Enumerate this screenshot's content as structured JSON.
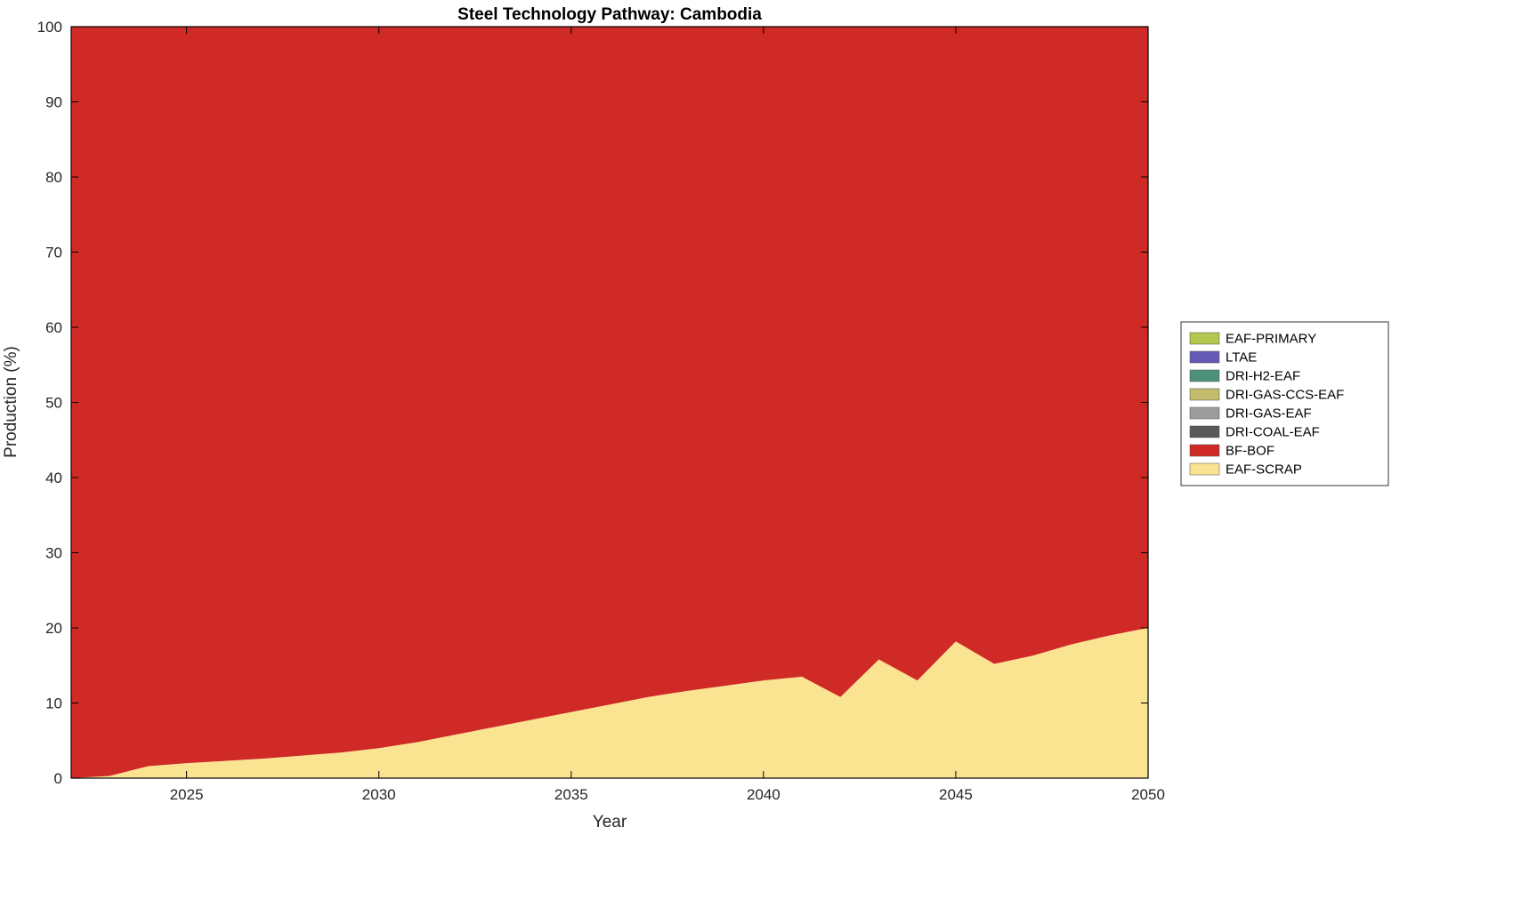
{
  "figure": {
    "background": "#ffffff"
  },
  "chart_data": {
    "type": "area",
    "stacked": true,
    "stack_order": "first-series-on-bottom",
    "title": "Steel Technology Pathway: Cambodia",
    "xlabel": "Year",
    "ylabel": "Production (%)",
    "xlim": [
      2022,
      2050
    ],
    "ylim": [
      0,
      100
    ],
    "xticks": [
      2025,
      2030,
      2035,
      2040,
      2045,
      2050
    ],
    "yticks": [
      0,
      10,
      20,
      30,
      40,
      50,
      60,
      70,
      80,
      90,
      100
    ],
    "grid": false,
    "axis_color": "#000000",
    "text_color": "#262626",
    "x": [
      2022,
      2023,
      2024,
      2025,
      2026,
      2027,
      2028,
      2029,
      2030,
      2031,
      2032,
      2033,
      2034,
      2035,
      2036,
      2037,
      2038,
      2039,
      2040,
      2041,
      2042,
      2043,
      2044,
      2045,
      2046,
      2047,
      2048,
      2049,
      2050
    ],
    "series": [
      {
        "name": "EAF-SCRAP",
        "color": "#FBE491",
        "values": [
          0,
          0.3,
          1.6,
          2.0,
          2.3,
          2.6,
          3.0,
          3.4,
          4.0,
          4.8,
          5.8,
          6.8,
          7.8,
          8.8,
          9.8,
          10.8,
          11.6,
          12.3,
          13.0,
          13.5,
          10.8,
          15.8,
          13.0,
          18.2,
          15.2,
          16.3,
          17.8,
          19.0,
          20.0
        ]
      },
      {
        "name": "BF-BOF",
        "color": "#CF2A25",
        "values": [
          100,
          99.7,
          98.4,
          98.0,
          97.7,
          97.4,
          97.0,
          96.6,
          96.0,
          95.2,
          94.2,
          93.2,
          92.2,
          91.2,
          90.2,
          89.2,
          88.4,
          87.7,
          87.0,
          86.5,
          89.2,
          84.2,
          87.0,
          81.8,
          84.8,
          83.7,
          82.2,
          81.0,
          80.0
        ]
      },
      {
        "name": "DRI-COAL-EAF",
        "color": "#595959",
        "values": [
          0,
          0,
          0,
          0,
          0,
          0,
          0,
          0,
          0,
          0,
          0,
          0,
          0,
          0,
          0,
          0,
          0,
          0,
          0,
          0,
          0,
          0,
          0,
          0,
          0,
          0,
          0,
          0,
          0
        ]
      },
      {
        "name": "DRI-GAS-EAF",
        "color": "#9C9C9C",
        "values": [
          0,
          0,
          0,
          0,
          0,
          0,
          0,
          0,
          0,
          0,
          0,
          0,
          0,
          0,
          0,
          0,
          0,
          0,
          0,
          0,
          0,
          0,
          0,
          0,
          0,
          0,
          0,
          0,
          0
        ]
      },
      {
        "name": "DRI-GAS-CCS-EAF",
        "color": "#C2BC6C",
        "values": [
          0,
          0,
          0,
          0,
          0,
          0,
          0,
          0,
          0,
          0,
          0,
          0,
          0,
          0,
          0,
          0,
          0,
          0,
          0,
          0,
          0,
          0,
          0,
          0,
          0,
          0,
          0,
          0,
          0
        ]
      },
      {
        "name": "DRI-H2-EAF",
        "color": "#4E9179",
        "values": [
          0,
          0,
          0,
          0,
          0,
          0,
          0,
          0,
          0,
          0,
          0,
          0,
          0,
          0,
          0,
          0,
          0,
          0,
          0,
          0,
          0,
          0,
          0,
          0,
          0,
          0,
          0,
          0,
          0
        ]
      },
      {
        "name": "LTAE",
        "color": "#6459B4",
        "values": [
          0,
          0,
          0,
          0,
          0,
          0,
          0,
          0,
          0,
          0,
          0,
          0,
          0,
          0,
          0,
          0,
          0,
          0,
          0,
          0,
          0,
          0,
          0,
          0,
          0,
          0,
          0,
          0,
          0
        ]
      },
      {
        "name": "EAF-PRIMARY",
        "color": "#B3C84F",
        "values": [
          0,
          0,
          0,
          0,
          0,
          0,
          0,
          0,
          0,
          0,
          0,
          0,
          0,
          0,
          0,
          0,
          0,
          0,
          0,
          0,
          0,
          0,
          0,
          0,
          0,
          0,
          0,
          0,
          0
        ]
      }
    ],
    "legend": {
      "position": "outside-right",
      "order_top_to_bottom": [
        "EAF-PRIMARY",
        "LTAE",
        "DRI-H2-EAF",
        "DRI-GAS-CCS-EAF",
        "DRI-GAS-EAF",
        "DRI-COAL-EAF",
        "BF-BOF",
        "EAF-SCRAP"
      ]
    }
  }
}
